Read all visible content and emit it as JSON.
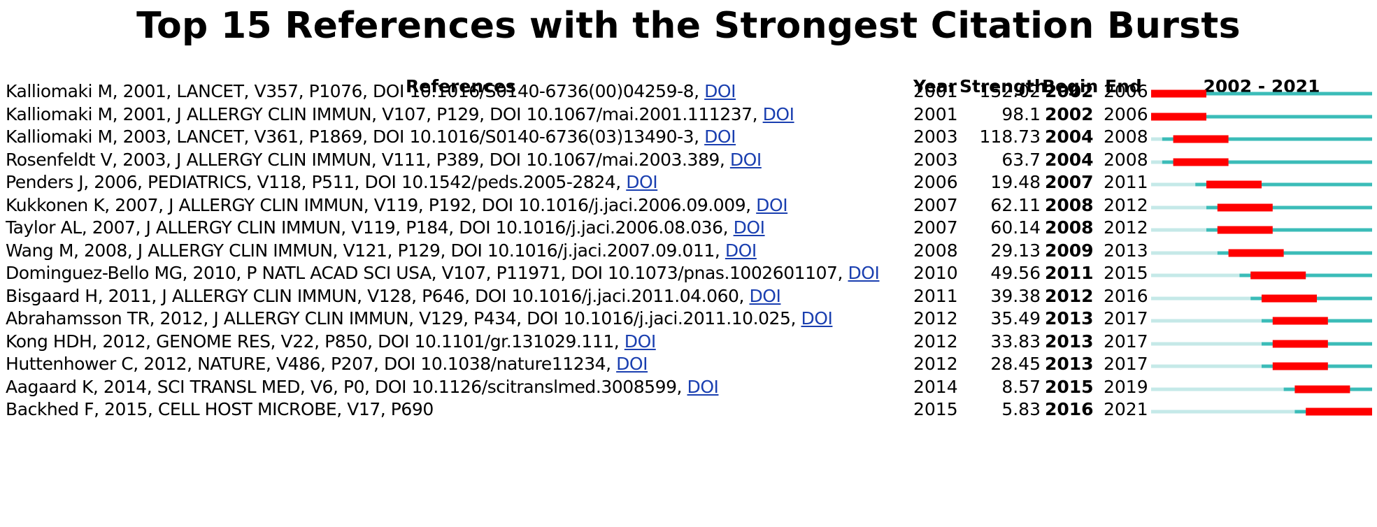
{
  "chart_data": {
    "type": "table",
    "title": "Top 15 References with the Strongest Citation Bursts",
    "columns": [
      "References",
      "Year",
      "Strength",
      "Begin",
      "End",
      "2002 - 2021"
    ],
    "timeline": {
      "start": 2002,
      "end": 2021,
      "label": "2002 - 2021"
    },
    "colors": {
      "burst": "#ff0000",
      "active": "#3bbcb8",
      "inactive": "#c5e9e8",
      "link": "#1a3fb0"
    },
    "rows": [
      {
        "ref": "Kalliomaki M, 2001, LANCET, V357, P1076, DOI 10.1016/S0140-6736(00)04259-8, ",
        "doi": "DOI",
        "year": "2001",
        "strength": "152.02",
        "begin": "2002",
        "end": "2006"
      },
      {
        "ref": "Kalliomaki M, 2001, J ALLERGY CLIN IMMUN, V107, P129, DOI 10.1067/mai.2001.111237, ",
        "doi": "DOI",
        "year": "2001",
        "strength": "98.1",
        "begin": "2002",
        "end": "2006"
      },
      {
        "ref": "Kalliomaki M, 2003, LANCET, V361, P1869, DOI 10.1016/S0140-6736(03)13490-3, ",
        "doi": "DOI",
        "year": "2003",
        "strength": "118.73",
        "begin": "2004",
        "end": "2008"
      },
      {
        "ref": "Rosenfeldt V, 2003, J ALLERGY CLIN IMMUN, V111, P389, DOI 10.1067/mai.2003.389, ",
        "doi": "DOI",
        "year": "2003",
        "strength": "63.7",
        "begin": "2004",
        "end": "2008"
      },
      {
        "ref": "Penders J, 2006, PEDIATRICS, V118, P511, DOI 10.1542/peds.2005-2824, ",
        "doi": "DOI",
        "year": "2006",
        "strength": "19.48",
        "begin": "2007",
        "end": "2011"
      },
      {
        "ref": "Kukkonen K, 2007, J ALLERGY CLIN IMMUN, V119, P192, DOI 10.1016/j.jaci.2006.09.009, ",
        "doi": "DOI",
        "year": "2007",
        "strength": "62.11",
        "begin": "2008",
        "end": "2012"
      },
      {
        "ref": "Taylor AL, 2007, J ALLERGY CLIN IMMUN, V119, P184, DOI 10.1016/j.jaci.2006.08.036, ",
        "doi": "DOI",
        "year": "2007",
        "strength": "60.14",
        "begin": "2008",
        "end": "2012"
      },
      {
        "ref": "Wang M, 2008, J ALLERGY CLIN IMMUN, V121, P129, DOI 10.1016/j.jaci.2007.09.011, ",
        "doi": "DOI",
        "year": "2008",
        "strength": "29.13",
        "begin": "2009",
        "end": "2013"
      },
      {
        "ref": "Dominguez-Bello MG, 2010, P NATL ACAD SCI USA, V107, P11971, DOI 10.1073/pnas.1002601107, ",
        "doi": "DOI",
        "year": "2010",
        "strength": "49.56",
        "begin": "2011",
        "end": "2015"
      },
      {
        "ref": "Bisgaard H, 2011, J ALLERGY CLIN IMMUN, V128, P646, DOI 10.1016/j.jaci.2011.04.060, ",
        "doi": "DOI",
        "year": "2011",
        "strength": "39.38",
        "begin": "2012",
        "end": "2016"
      },
      {
        "ref": "Abrahamsson TR, 2012, J ALLERGY CLIN IMMUN, V129, P434, DOI 10.1016/j.jaci.2011.10.025, ",
        "doi": "DOI",
        "year": "2012",
        "strength": "35.49",
        "begin": "2013",
        "end": "2017"
      },
      {
        "ref": "Kong HDH, 2012, GENOME RES, V22, P850, DOI 10.1101/gr.131029.111, ",
        "doi": "DOI",
        "year": "2012",
        "strength": "33.83",
        "begin": "2013",
        "end": "2017"
      },
      {
        "ref": "Huttenhower C, 2012, NATURE, V486, P207, DOI 10.1038/nature11234, ",
        "doi": "DOI",
        "year": "2012",
        "strength": "28.45",
        "begin": "2013",
        "end": "2017"
      },
      {
        "ref": "Aagaard K, 2014, SCI TRANSL MED, V6, P0, DOI 10.1126/scitranslmed.3008599, ",
        "doi": "DOI",
        "year": "2014",
        "strength": "8.57",
        "begin": "2015",
        "end": "2019"
      },
      {
        "ref": "Backhed F, 2015, CELL HOST MICROBE, V17, P690",
        "doi": "",
        "year": "2015",
        "strength": "5.83",
        "begin": "2016",
        "end": "2021"
      }
    ]
  }
}
